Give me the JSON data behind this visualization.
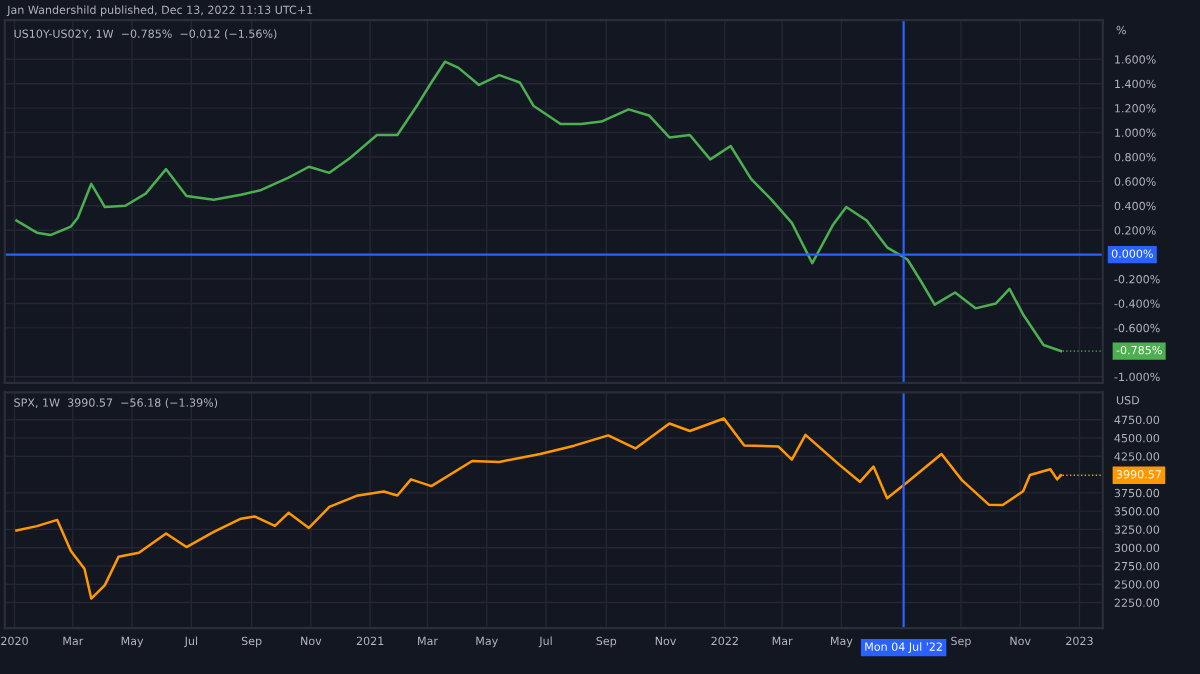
{
  "chart_data": [
    {
      "type": "line",
      "title": "US10Y-US02Y, 1W  −0.785%  −0.012 (−1.56%)",
      "annotations": [
        "Jan Wandershild published, Dec 13, 2022 11:13 UTC+1",
        "-0.785%"
      ],
      "ylabel": "%",
      "x": [
        "2020-01-03",
        "2020-01-24",
        "2020-02-07",
        "2020-02-28",
        "2020-03-06",
        "2020-03-20",
        "2020-04-03",
        "2020-04-24",
        "2020-05-15",
        "2020-06-05",
        "2020-06-26",
        "2020-07-24",
        "2020-08-21",
        "2020-09-11",
        "2020-10-09",
        "2020-10-30",
        "2020-11-20",
        "2020-12-11",
        "2021-01-08",
        "2021-01-29",
        "2021-02-19",
        "2021-03-05",
        "2021-03-19",
        "2021-04-02",
        "2021-04-23",
        "2021-05-14",
        "2021-06-04",
        "2021-06-18",
        "2021-07-16",
        "2021-08-06",
        "2021-08-27",
        "2021-09-24",
        "2021-10-15",
        "2021-11-05",
        "2021-11-26",
        "2021-12-17",
        "2022-01-07",
        "2022-01-28",
        "2022-02-18",
        "2022-03-11",
        "2022-04-01",
        "2022-04-22",
        "2022-05-06",
        "2022-05-27",
        "2022-06-17",
        "2022-07-08",
        "2022-07-22",
        "2022-08-05",
        "2022-08-26",
        "2022-09-16",
        "2022-10-07",
        "2022-10-21",
        "2022-11-04",
        "2022-11-25",
        "2022-12-13"
      ],
      "series": [
        {
          "color": "#4caf50",
          "values": [
            0.28,
            0.18,
            0.16,
            0.23,
            0.3,
            0.58,
            0.39,
            0.4,
            0.5,
            0.7,
            0.48,
            0.45,
            0.49,
            0.53,
            0.63,
            0.72,
            0.67,
            0.79,
            0.98,
            0.98,
            1.23,
            1.41,
            1.58,
            1.53,
            1.39,
            1.47,
            1.41,
            1.22,
            1.07,
            1.07,
            1.09,
            1.19,
            1.14,
            0.96,
            0.98,
            0.78,
            0.89,
            0.62,
            0.45,
            0.26,
            -0.07,
            0.24,
            0.39,
            0.28,
            0.06,
            -0.04,
            -0.22,
            -0.41,
            -0.31,
            -0.44,
            -0.4,
            -0.28,
            -0.49,
            -0.74,
            -0.79
          ]
        }
      ],
      "xlim": [
        "2019-12-22",
        "2023-01-25"
      ],
      "xticks": [
        {
          "value": "2020-01-01",
          "label": null
        },
        {
          "value": "2020-03-01",
          "label": null
        },
        {
          "value": "2020-05-01",
          "label": null
        },
        {
          "value": "2020-07-01",
          "label": null
        },
        {
          "value": "2020-09-01",
          "label": null
        },
        {
          "value": "2020-11-01",
          "label": null
        },
        {
          "value": "2021-01-01",
          "label": null
        },
        {
          "value": "2021-03-01",
          "label": null
        },
        {
          "value": "2021-05-01",
          "label": null
        },
        {
          "value": "2021-07-01",
          "label": null
        },
        {
          "value": "2021-09-01",
          "label": null
        },
        {
          "value": "2021-11-01",
          "label": null
        },
        {
          "value": "2022-01-01",
          "label": null
        },
        {
          "value": "2022-03-01",
          "label": null
        },
        {
          "value": "2022-05-01",
          "label": null
        },
        {
          "value": "2022-09-01",
          "label": null
        },
        {
          "value": "2022-11-01",
          "label": null
        },
        {
          "value": "2023-01-01",
          "label": null
        }
      ],
      "ylim": [
        -1.05,
        1.92
      ],
      "yticks": [
        {
          "value": -1.0,
          "label": "-1.000%"
        },
        {
          "value": -0.6,
          "label": "-0.600%"
        },
        {
          "value": -0.4,
          "label": "-0.400%"
        },
        {
          "value": -0.2,
          "label": "-0.200%"
        },
        {
          "value": 0.2,
          "label": "0.200%"
        },
        {
          "value": 0.4,
          "label": "0.400%"
        },
        {
          "value": 0.6,
          "label": "0.600%"
        },
        {
          "value": 0.8,
          "label": "0.800%"
        },
        {
          "value": 1.0,
          "label": "1.000%"
        },
        {
          "value": 1.2,
          "label": "1.200%"
        },
        {
          "value": 1.4,
          "label": "1.400%"
        },
        {
          "value": 1.6,
          "label": "1.600%"
        }
      ],
      "ref_lines": [
        {
          "axis": "y",
          "value": 0,
          "label": "0.000%",
          "color": "#2962ff"
        },
        {
          "axis": "x",
          "value": "2022-07-04",
          "color": "#2962ff"
        }
      ],
      "grid": true,
      "tick_labels": "y"
    },
    {
      "type": "line",
      "title": "SPX, 1W  3990.57  −56.18 (−1.39%)",
      "annotations": [
        "3990.57"
      ],
      "ylabel": "USD",
      "x": [
        "2020-01-03",
        "2020-01-24",
        "2020-02-14",
        "2020-02-28",
        "2020-03-13",
        "2020-03-20",
        "2020-04-03",
        "2020-04-17",
        "2020-05-08",
        "2020-06-05",
        "2020-06-26",
        "2020-07-24",
        "2020-08-21",
        "2020-09-04",
        "2020-09-25",
        "2020-10-09",
        "2020-10-30",
        "2020-11-20",
        "2020-12-18",
        "2021-01-15",
        "2021-01-29",
        "2021-02-12",
        "2021-03-05",
        "2021-04-16",
        "2021-05-14",
        "2021-06-25",
        "2021-07-30",
        "2021-09-03",
        "2021-10-01",
        "2021-11-05",
        "2021-11-26",
        "2021-12-31",
        "2022-01-21",
        "2022-02-25",
        "2022-03-11",
        "2022-03-25",
        "2022-04-29",
        "2022-05-20",
        "2022-06-03",
        "2022-06-17",
        "2022-07-08",
        "2022-08-12",
        "2022-09-02",
        "2022-09-30",
        "2022-10-14",
        "2022-11-04",
        "2022-11-11",
        "2022-12-02",
        "2022-12-09",
        "2022-12-13"
      ],
      "series": [
        {
          "color": "#ff9800",
          "values": [
            3235,
            3295,
            3380,
            2954,
            2711,
            2305,
            2489,
            2875,
            2930,
            3194,
            3009,
            3216,
            3397,
            3427,
            3298,
            3477,
            3270,
            3558,
            3709,
            3768,
            3714,
            3934,
            3842,
            4185,
            4173,
            4281,
            4395,
            4535,
            4357,
            4698,
            4595,
            4766,
            4398,
            4385,
            4204,
            4543,
            4132,
            3901,
            4109,
            3675,
            3899,
            4280,
            3924,
            3586,
            3583,
            3771,
            3993,
            4072,
            3934,
            3990
          ]
        }
      ],
      "xlim": [
        "2019-12-22",
        "2023-01-25"
      ],
      "xticks": [
        {
          "value": "2020-01-01",
          "label": "2020"
        },
        {
          "value": "2020-03-01",
          "label": "Mar"
        },
        {
          "value": "2020-05-01",
          "label": "May"
        },
        {
          "value": "2020-07-01",
          "label": "Jul"
        },
        {
          "value": "2020-09-01",
          "label": "Sep"
        },
        {
          "value": "2020-11-01",
          "label": "Nov"
        },
        {
          "value": "2021-01-01",
          "label": "2021"
        },
        {
          "value": "2021-03-01",
          "label": "Mar"
        },
        {
          "value": "2021-05-01",
          "label": "May"
        },
        {
          "value": "2021-07-01",
          "label": "Jul"
        },
        {
          "value": "2021-09-01",
          "label": "Sep"
        },
        {
          "value": "2021-11-01",
          "label": "Nov"
        },
        {
          "value": "2022-01-01",
          "label": "2022"
        },
        {
          "value": "2022-03-01",
          "label": "Mar"
        },
        {
          "value": "2022-05-01",
          "label": "May"
        },
        {
          "value": "2022-09-01",
          "label": "Sep"
        },
        {
          "value": "2022-11-01",
          "label": "Nov"
        },
        {
          "value": "2023-01-01",
          "label": "2023"
        }
      ],
      "ylim": [
        1900,
        5125
      ],
      "yticks": [
        {
          "value": 2250,
          "label": "2250.00"
        },
        {
          "value": 2500,
          "label": "2500.00"
        },
        {
          "value": 2750,
          "label": "2750.00"
        },
        {
          "value": 3000,
          "label": "3000.00"
        },
        {
          "value": 3250,
          "label": "3250.00"
        },
        {
          "value": 3500,
          "label": "3500.00"
        },
        {
          "value": 3750,
          "label": "3750.00"
        },
        {
          "value": 4250,
          "label": "4250.00"
        },
        {
          "value": 4500,
          "label": "4500.00"
        },
        {
          "value": 4750,
          "label": "4750.00"
        }
      ],
      "ref_lines": [
        {
          "axis": "x",
          "value": "2022-07-04",
          "label": "Mon 04 Jul '22",
          "color": "#2962ff"
        }
      ],
      "grid": true
    }
  ]
}
